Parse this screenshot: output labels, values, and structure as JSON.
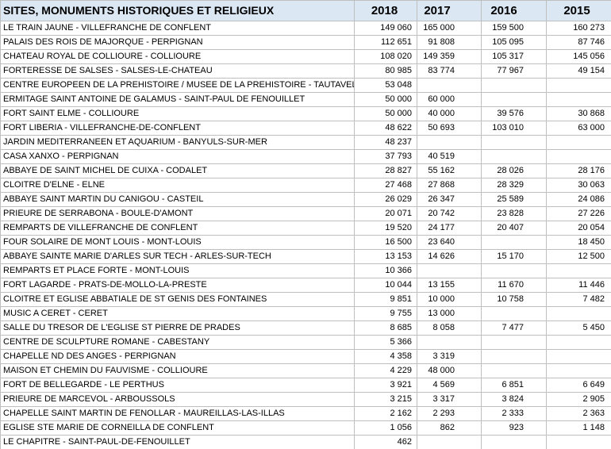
{
  "table": {
    "header": [
      "SITES, MONUMENTS HISTORIQUES ET RELIGIEUX",
      "2018",
      "2017",
      "2016",
      "2015"
    ],
    "rows": [
      [
        "LE TRAIN JAUNE - VILLEFRANCHE DE CONFLENT",
        "149 060",
        "165 000",
        "159 500",
        "160 273"
      ],
      [
        "PALAIS DES ROIS DE MAJORQUE - PERPIGNAN",
        "112 651",
        "91 808",
        "105 095",
        "87 746"
      ],
      [
        "CHATEAU ROYAL DE COLLIOURE - COLLIOURE",
        "108 020",
        "149 359",
        "105 317",
        "145 056"
      ],
      [
        "FORTERESSE DE SALSES - SALSES-LE-CHATEAU",
        "80 985",
        "83 774",
        "77 967",
        "49 154"
      ],
      [
        "CENTRE EUROPEEN DE LA PREHISTOIRE / MUSEE DE LA PREHISTOIRE - TAUTAVEL",
        "53 048",
        null,
        null,
        null
      ],
      [
        "ERMITAGE SAINT ANTOINE DE GALAMUS  - SAINT-PAUL DE FENOUILLET",
        "50 000",
        "60 000",
        null,
        null
      ],
      [
        "FORT SAINT ELME - COLLIOURE",
        "50 000",
        "40 000",
        "39 576",
        "30 868"
      ],
      [
        "FORT LIBERIA - VILLEFRANCHE-DE-CONFLENT",
        "48 622",
        "50 693",
        "103 010",
        "63 000"
      ],
      [
        "JARDIN MEDITERRANEEN ET AQUARIUM - BANYULS-SUR-MER",
        "48 237",
        null,
        null,
        null
      ],
      [
        "CASA XANXO - PERPIGNAN",
        "37 793",
        "40 519",
        null,
        null
      ],
      [
        "ABBAYE DE SAINT MICHEL DE CUIXA - CODALET",
        "28 827",
        "55 162",
        "28 026",
        "28 176"
      ],
      [
        "CLOITRE D'ELNE - ELNE",
        "27 468",
        "27 868",
        "28 329",
        "30 063"
      ],
      [
        "ABBAYE SAINT MARTIN DU CANIGOU - CASTEIL",
        "26 029",
        "26 347",
        "25 589",
        "24 086"
      ],
      [
        "PRIEURE DE SERRABONA - BOULE-D'AMONT",
        "20 071",
        "20 742",
        "23 828",
        "27 226"
      ],
      [
        "REMPARTS DE VILLEFRANCHE DE CONFLENT",
        "19 520",
        "24 177",
        "20 407",
        "20 054"
      ],
      [
        "FOUR SOLAIRE DE MONT LOUIS - MONT-LOUIS",
        "16 500",
        "23 640",
        null,
        "18 450"
      ],
      [
        "ABBAYE SAINTE MARIE D'ARLES SUR TECH - ARLES-SUR-TECH",
        "13 153",
        "14 626",
        "15 170",
        "12 500"
      ],
      [
        "REMPARTS ET PLACE FORTE - MONT-LOUIS",
        "10 366",
        null,
        null,
        null
      ],
      [
        "FORT LAGARDE - PRATS-DE-MOLLO-LA-PRESTE",
        "10 044",
        "13 155",
        "11 670",
        "11 446"
      ],
      [
        "CLOITRE ET EGLISE ABBATIALE DE ST GENIS DES FONTAINES",
        "9 851",
        "10 000",
        "10 758",
        "7 482"
      ],
      [
        "MUSIC A CERET - CERET",
        "9 755",
        "13 000",
        null,
        null
      ],
      [
        "SALLE DU TRESOR DE L'EGLISE ST PIERRE DE PRADES",
        "8 685",
        "8 058",
        "7 477",
        "5 450"
      ],
      [
        "CENTRE DE SCULPTURE ROMANE - CABESTANY",
        "5 366",
        null,
        null,
        null
      ],
      [
        "CHAPELLE ND DES ANGES  - PERPIGNAN",
        "4 358",
        "3 319",
        null,
        null
      ],
      [
        "MAISON ET CHEMIN DU FAUVISME - COLLIOURE",
        "4 229",
        "48 000",
        null,
        null
      ],
      [
        "FORT DE BELLEGARDE - LE PERTHUS",
        "3 921",
        "4 569",
        "6 851",
        "6 649"
      ],
      [
        "PRIEURE DE MARCEVOL - ARBOUSSOLS",
        "3 215",
        "3 317",
        "3 824",
        "2 905"
      ],
      [
        "CHAPELLE SAINT MARTIN DE FENOLLAR - MAUREILLAS-LAS-ILLAS",
        "2 162",
        "2 293",
        "2 333",
        "2 363"
      ],
      [
        "EGLISE STE MARIE DE CORNEILLA DE CONFLENT",
        "1 056",
        "862",
        "923",
        "1 148"
      ],
      [
        "LE CHAPITRE - SAINT-PAUL-DE-FENOUILLET",
        "462",
        null,
        null,
        null
      ]
    ]
  }
}
